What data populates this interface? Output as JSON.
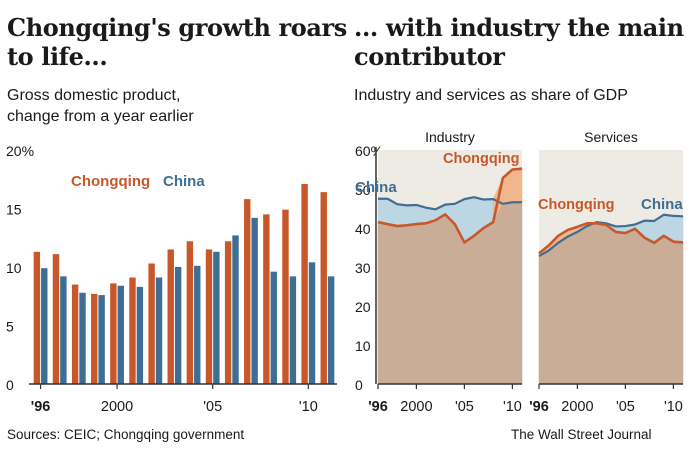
{
  "left": {
    "title_line1": "Chongqing's growth roars",
    "title_line2": "to life...",
    "subtitle_line1": "Gross domestic product,",
    "subtitle_line2": "change from a year earlier"
  },
  "right": {
    "title_line1": "... with industry the main",
    "title_line2": "contributor",
    "subtitle": "Industry and services as share of GDP"
  },
  "footer": {
    "sources": "Sources: CEIC; Chongqing government",
    "credit": "The Wall Street Journal"
  },
  "colors": {
    "chongqing": "#c8582a",
    "china": "#3f6e94",
    "chongqing_fill": "#f0b68c",
    "china_fill": "#bcd6e3",
    "shared_fill": "#c9ad96",
    "axis": "#333333"
  },
  "chart_data": [
    {
      "type": "bar",
      "title": "",
      "xlabel": "",
      "ylabel": "",
      "ylim": [
        0,
        20
      ],
      "yticks": [
        "20%",
        "15",
        "10",
        "5",
        "0"
      ],
      "xtick_labels": [
        "'96",
        "2000",
        "'05",
        "'10"
      ],
      "x_range": [
        1996,
        2011
      ],
      "legend": [
        "Chongqing",
        "China"
      ],
      "legend_position": "top-left",
      "grid": false,
      "categories": [
        1996,
        1997,
        1998,
        1999,
        2000,
        2001,
        2002,
        2003,
        2004,
        2005,
        2006,
        2007,
        2008,
        2009,
        2010,
        2011
      ],
      "series": [
        {
          "name": "Chongqing",
          "values": [
            11.3,
            11.1,
            8.5,
            7.7,
            8.6,
            9.1,
            10.3,
            11.5,
            12.2,
            11.5,
            12.2,
            15.8,
            14.5,
            14.9,
            17.1,
            16.4
          ]
        },
        {
          "name": "China",
          "values": [
            9.9,
            9.2,
            7.8,
            7.6,
            8.4,
            8.3,
            9.1,
            10.0,
            10.1,
            11.3,
            12.7,
            14.2,
            9.6,
            9.2,
            10.4,
            9.2
          ]
        }
      ]
    },
    {
      "type": "area",
      "title": "Industry",
      "xlabel": "",
      "ylabel": "",
      "ylim": [
        0,
        60
      ],
      "yticks": [
        "60%",
        "50",
        "40",
        "30",
        "20",
        "10",
        "0"
      ],
      "xtick_labels": [
        "'96",
        "2000",
        "'05",
        "'10"
      ],
      "x_range": [
        1996,
        2011
      ],
      "grid": false,
      "series": [
        {
          "name": "China",
          "x": [
            1996,
            1997,
            1998,
            1999,
            2000,
            2001,
            2002,
            2003,
            2004,
            2005,
            2006,
            2007,
            2008,
            2009,
            2010,
            2011
          ],
          "values": [
            47.5,
            47.5,
            46.1,
            45.8,
            45.9,
            45.2,
            44.8,
            46.0,
            46.2,
            47.4,
            47.9,
            47.3,
            47.4,
            46.2,
            46.6,
            46.6
          ]
        },
        {
          "name": "Chongqing",
          "x": [
            1996,
            1997,
            1998,
            1999,
            2000,
            2001,
            2002,
            2003,
            2004,
            2005,
            2006,
            2007,
            2008,
            2009,
            2010,
            2011
          ],
          "values": [
            41.5,
            41.0,
            40.5,
            40.7,
            41.0,
            41.2,
            42.0,
            43.5,
            41.0,
            36.3,
            38.0,
            40.0,
            41.5,
            52.8,
            55.0,
            55.2
          ]
        }
      ]
    },
    {
      "type": "area",
      "title": "Services",
      "xlabel": "",
      "ylabel": "",
      "ylim": [
        0,
        60
      ],
      "xtick_labels": [
        "'96",
        "2000",
        "'05",
        "'10"
      ],
      "x_range": [
        1996,
        2011
      ],
      "grid": false,
      "series": [
        {
          "name": "China",
          "x": [
            1996,
            1997,
            1998,
            1999,
            2000,
            2001,
            2002,
            2003,
            2004,
            2005,
            2006,
            2007,
            2008,
            2009,
            2010,
            2011
          ],
          "values": [
            32.8,
            34.2,
            36.2,
            37.8,
            39.0,
            40.5,
            41.5,
            41.2,
            40.4,
            40.5,
            40.9,
            41.9,
            41.8,
            43.4,
            43.1,
            43.0
          ]
        },
        {
          "name": "Chongqing",
          "x": [
            1996,
            1997,
            1998,
            1999,
            2000,
            2001,
            2002,
            2003,
            2004,
            2005,
            2006,
            2007,
            2008,
            2009,
            2010,
            2011
          ],
          "values": [
            33.5,
            35.5,
            38.0,
            39.5,
            40.3,
            41.2,
            41.2,
            40.8,
            39.0,
            38.7,
            39.8,
            37.5,
            36.2,
            38.0,
            36.5,
            36.3
          ]
        }
      ]
    }
  ]
}
